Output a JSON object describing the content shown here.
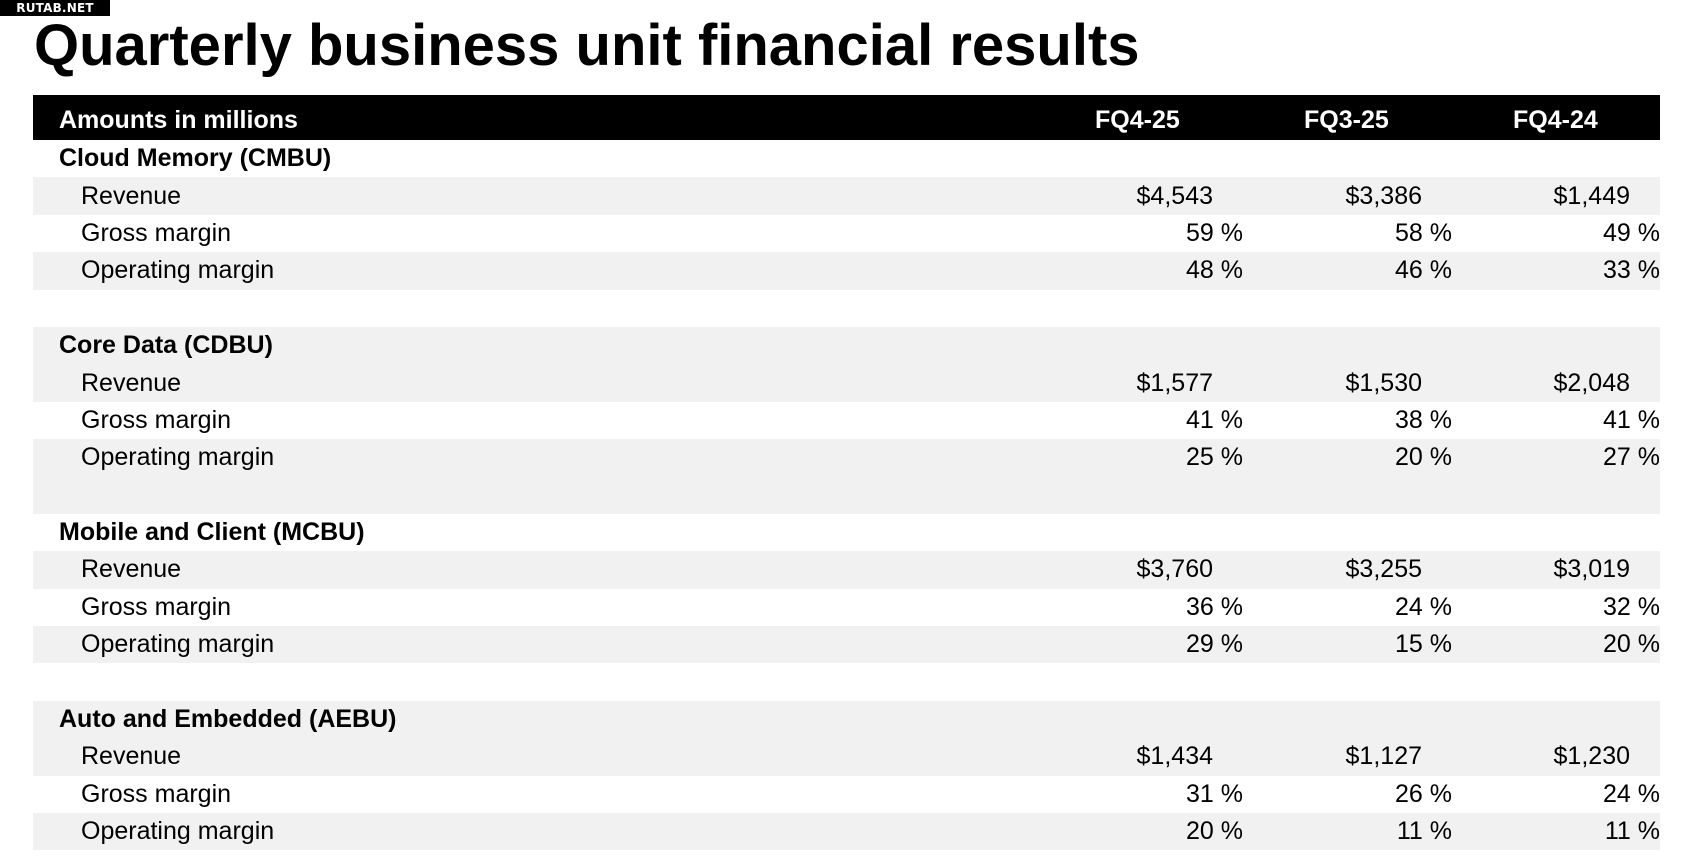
{
  "watermark": "RUTAB.NET",
  "title": "Quarterly business unit financial results",
  "table": {
    "header_label": "Amounts in millions",
    "columns": [
      "FQ4-25",
      "FQ3-25",
      "FQ4-24"
    ],
    "sections": [
      {
        "name": "Cloud Memory (CMBU)",
        "rows": [
          {
            "label": "Revenue",
            "values": [
              "$4,543",
              "$3,386",
              "$1,449"
            ]
          },
          {
            "label": "Gross margin",
            "values": [
              "59 %",
              "58 %",
              "49 %"
            ]
          },
          {
            "label": "Operating margin",
            "values": [
              "48 %",
              "46 %",
              "33 %"
            ]
          }
        ]
      },
      {
        "name": "Core Data (CDBU)",
        "rows": [
          {
            "label": "Revenue",
            "values": [
              "$1,577",
              "$1,530",
              "$2,048"
            ]
          },
          {
            "label": "Gross margin",
            "values": [
              "41 %",
              "38 %",
              "41 %"
            ]
          },
          {
            "label": "Operating margin",
            "values": [
              "25 %",
              "20 %",
              "27 %"
            ]
          }
        ]
      },
      {
        "name": "Mobile and Client (MCBU)",
        "rows": [
          {
            "label": "Revenue",
            "values": [
              "$3,760",
              "$3,255",
              "$3,019"
            ]
          },
          {
            "label": "Gross margin",
            "values": [
              "36 %",
              "24 %",
              "32 %"
            ]
          },
          {
            "label": "Operating margin",
            "values": [
              "29 %",
              "15 %",
              "20 %"
            ]
          }
        ]
      },
      {
        "name": "Auto and Embedded (AEBU)",
        "rows": [
          {
            "label": "Revenue",
            "values": [
              "$1,434",
              "$1,127",
              "$1,230"
            ]
          },
          {
            "label": "Gross margin",
            "values": [
              "31 %",
              "26 %",
              "24 %"
            ]
          },
          {
            "label": "Operating margin",
            "values": [
              "20 %",
              "11 %",
              "11 %"
            ]
          }
        ]
      }
    ]
  }
}
